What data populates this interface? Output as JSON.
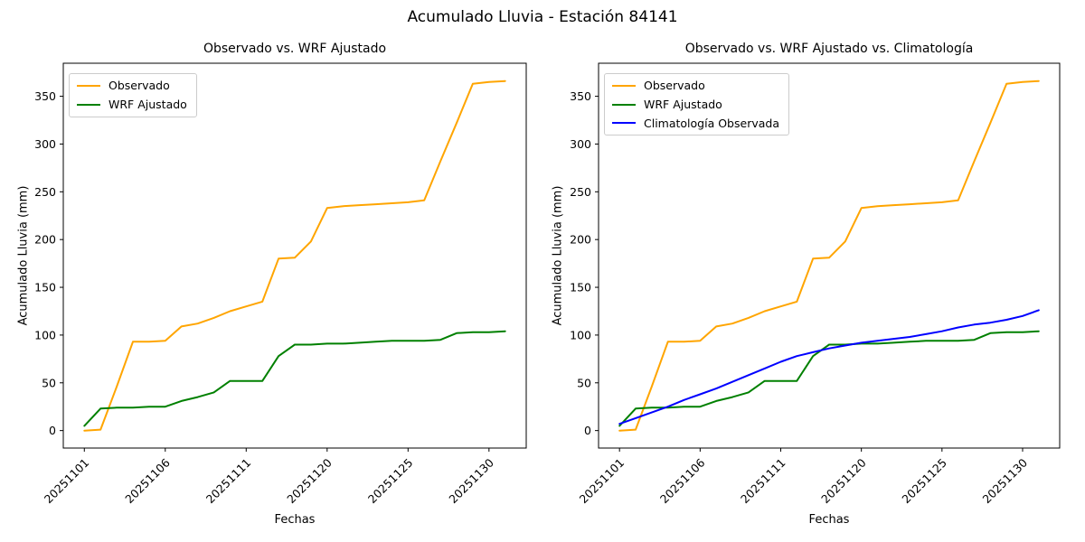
{
  "figure": {
    "title": "Acumulado Lluvia - Estación 84141",
    "background": "#ffffff"
  },
  "colors": {
    "observado": "#FFA500",
    "wrf_ajustado": "#008000",
    "climatologia": "#0000FF",
    "axis": "#000000",
    "legend_border": "#cccccc"
  },
  "chart_data": [
    {
      "type": "line",
      "title": "Observado vs. WRF Ajustado",
      "xlabel": "Fechas",
      "ylabel": "Acumulado Lluvia (mm)",
      "n_points": 27,
      "ylim": [
        -18.3,
        384.6
      ],
      "yticks": [
        0,
        50,
        100,
        150,
        200,
        250,
        300,
        350
      ],
      "x_tick_positions": [
        0,
        5,
        10,
        15,
        20,
        25
      ],
      "x_tick_labels": [
        "20251101",
        "20251106",
        "20251111",
        "20251120",
        "20251125",
        "20251130"
      ],
      "grid": false,
      "legend_location": "upper left",
      "series": [
        {
          "name": "Observado",
          "color": "#FFA500",
          "values": [
            0,
            1,
            46,
            93,
            93,
            94,
            109,
            112,
            118,
            125,
            130,
            135,
            180,
            181,
            198,
            233,
            235,
            236,
            237,
            238,
            239,
            241,
            282,
            322,
            363,
            365,
            366
          ]
        },
        {
          "name": "WRF Ajustado",
          "color": "#008000",
          "values": [
            5,
            23,
            24,
            24,
            25,
            25,
            31,
            35,
            40,
            52,
            52,
            52,
            78,
            90,
            90,
            91,
            91,
            92,
            93,
            94,
            94,
            94,
            95,
            102,
            103,
            103,
            104
          ]
        }
      ]
    },
    {
      "type": "line",
      "title": "Observado vs. WRF Ajustado vs. Climatología",
      "xlabel": "Fechas",
      "ylabel": "Acumulado Lluvia (mm)",
      "n_points": 27,
      "ylim": [
        -18.3,
        384.6
      ],
      "yticks": [
        0,
        50,
        100,
        150,
        200,
        250,
        300,
        350
      ],
      "x_tick_positions": [
        0,
        5,
        10,
        15,
        20,
        25
      ],
      "x_tick_labels": [
        "20251101",
        "20251106",
        "20251111",
        "20251120",
        "20251125",
        "20251130"
      ],
      "grid": false,
      "legend_location": "upper left",
      "series": [
        {
          "name": "Observado",
          "color": "#FFA500",
          "values": [
            0,
            1,
            46,
            93,
            93,
            94,
            109,
            112,
            118,
            125,
            130,
            135,
            180,
            181,
            198,
            233,
            235,
            236,
            237,
            238,
            239,
            241,
            282,
            322,
            363,
            365,
            366
          ]
        },
        {
          "name": "WRF Ajustado",
          "color": "#008000",
          "values": [
            5,
            23,
            24,
            24,
            25,
            25,
            31,
            35,
            40,
            52,
            52,
            52,
            78,
            90,
            90,
            91,
            91,
            92,
            93,
            94,
            94,
            94,
            95,
            102,
            103,
            103,
            104
          ]
        },
        {
          "name": "Climatología Observada",
          "color": "#0000FF",
          "values": [
            7,
            13,
            19,
            25,
            32,
            38,
            44,
            51,
            58,
            65,
            72,
            78,
            82,
            86,
            89,
            92,
            94,
            96,
            98,
            101,
            104,
            108,
            111,
            113,
            116,
            120,
            126
          ]
        }
      ]
    }
  ]
}
